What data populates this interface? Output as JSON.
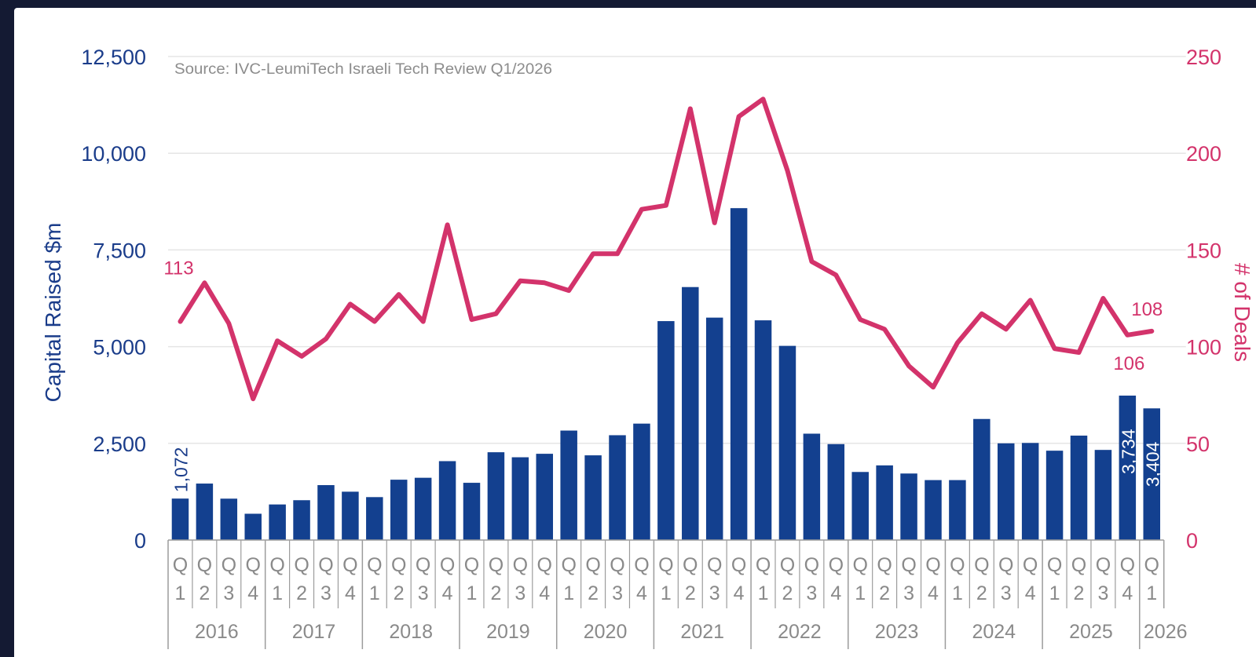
{
  "colors": {
    "background": "#141a33",
    "panel": "#ffffff",
    "bars": "#13408f",
    "line": "#d3336b",
    "left_axis_text": "#1a3c8a",
    "right_axis_text": "#d3336b",
    "grid": "#e5e5e5",
    "axis_box": "#9c9c9c",
    "quarter_text": "#8a8a8a",
    "source_text": "#8c8c8c"
  },
  "chart_data": {
    "type": "bar",
    "source_note": "Source: IVC-LeumiTech Israeli Tech Review Q1/2026",
    "ylabel_left": "Capital Raised $m",
    "ylabel_right": "# of Deals",
    "y_left": {
      "range": [
        0,
        12500
      ],
      "ticks": [
        0,
        2500,
        5000,
        7500,
        10000,
        12500
      ],
      "tick_labels": [
        "0",
        "2,500",
        "5,000",
        "7,500",
        "10,000",
        "12,500"
      ]
    },
    "y_right": {
      "range": [
        0,
        250
      ],
      "ticks": [
        0,
        50,
        100,
        150,
        200,
        250
      ],
      "tick_labels": [
        "0",
        "50",
        "100",
        "150",
        "200",
        "250"
      ]
    },
    "grid": true,
    "quarter_prefix": "Q",
    "years": [
      {
        "label": "2016",
        "quarters": [
          "1",
          "2",
          "3",
          "4"
        ]
      },
      {
        "label": "2017",
        "quarters": [
          "1",
          "2",
          "3",
          "4"
        ]
      },
      {
        "label": "2018",
        "quarters": [
          "1",
          "2",
          "3",
          "4"
        ]
      },
      {
        "label": "2019",
        "quarters": [
          "1",
          "2",
          "3",
          "4"
        ]
      },
      {
        "label": "2020",
        "quarters": [
          "1",
          "2",
          "3",
          "4"
        ]
      },
      {
        "label": "2021",
        "quarters": [
          "1",
          "2",
          "3",
          "4"
        ]
      },
      {
        "label": "2022",
        "quarters": [
          "1",
          "2",
          "3",
          "4"
        ]
      },
      {
        "label": "2023",
        "quarters": [
          "1",
          "2",
          "3",
          "4"
        ]
      },
      {
        "label": "2024",
        "quarters": [
          "1",
          "2",
          "3",
          "4"
        ]
      },
      {
        "label": "2025",
        "quarters": [
          "1",
          "2",
          "3",
          "4"
        ]
      },
      {
        "label": "2026",
        "quarters": [
          "1"
        ]
      }
    ],
    "series": [
      {
        "axis": "left",
        "kind": "bar",
        "values": [
          1072,
          1460,
          1070,
          680,
          920,
          1030,
          1420,
          1250,
          1110,
          1560,
          1610,
          2040,
          1480,
          2270,
          2140,
          2230,
          2830,
          2190,
          2710,
          3010,
          5660,
          6540,
          5750,
          8580,
          5680,
          5020,
          2750,
          2480,
          1760,
          1930,
          1720,
          1550,
          1550,
          3130,
          2500,
          2510,
          2310,
          2700,
          2330,
          3734,
          3404
        ],
        "data_labels": [
          {
            "index": 0,
            "text": "1,072"
          },
          {
            "index": 39,
            "text": "3,734"
          },
          {
            "index": 40,
            "text": "3,404"
          }
        ]
      },
      {
        "axis": "right",
        "kind": "line",
        "values": [
          113,
          133,
          112,
          73,
          103,
          95,
          104,
          122,
          113,
          127,
          113,
          163,
          114,
          117,
          134,
          133,
          129,
          148,
          148,
          171,
          173,
          223,
          164,
          219,
          228,
          191,
          144,
          137,
          114,
          109,
          90,
          79,
          102,
          117,
          109,
          124,
          99,
          97,
          125,
          106,
          108
        ],
        "data_labels": [
          {
            "index": 0,
            "text": "113"
          },
          {
            "index": 39,
            "text": "106"
          },
          {
            "index": 40,
            "text": "108"
          }
        ]
      }
    ]
  }
}
